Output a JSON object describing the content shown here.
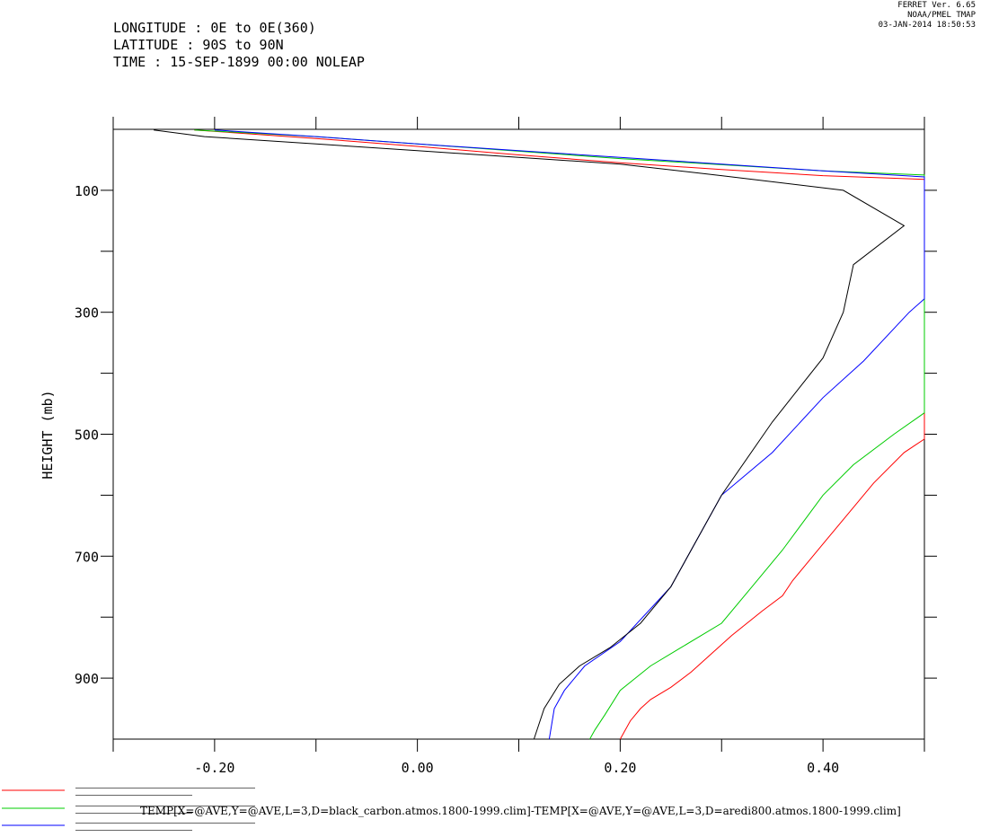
{
  "header": {
    "left_lines": [
      "LONGITUDE : 0E to 0E(360)",
      "LATITUDE : 90S to 90N",
      "TIME : 15-SEP-1899 00:00 NOLEAP"
    ],
    "right_lines": [
      "FERRET Ver. 6.65",
      "NOAA/PMEL TMAP",
      "03-JAN-2014 18:50:53"
    ]
  },
  "chart_data": {
    "type": "line",
    "ylabel": "HEIGHT (mb)",
    "xlabel": "",
    "xlim": [
      -0.3,
      0.5
    ],
    "ylim": [
      0,
      1000
    ],
    "y_inverted": true,
    "x_ticks": [
      -0.2,
      0.0,
      0.2,
      0.4
    ],
    "x_tick_labels": [
      "-0.20",
      "0.00",
      "0.20",
      "0.40"
    ],
    "x_minor_step": 0.1,
    "y_ticks": [
      100,
      300,
      500,
      700,
      900
    ],
    "y_tick_labels": [
      "100",
      "300",
      "500",
      "700",
      "900"
    ],
    "y_minor_step": 100,
    "series": [
      {
        "name": "red",
        "color": "#ff0000",
        "legend_text": "",
        "x": [
          -0.22,
          -0.1,
          0.0,
          0.1,
          0.2,
          0.3,
          0.4,
          0.5,
          0.5,
          0.48,
          0.45,
          0.42,
          0.4,
          0.37,
          0.36,
          0.34,
          0.31,
          0.29,
          0.27,
          0.25,
          0.23,
          0.22,
          0.21,
          0.2
        ],
        "y": [
          1,
          15,
          28,
          42,
          55,
          66,
          76,
          82,
          508,
          530,
          580,
          640,
          680,
          740,
          765,
          790,
          830,
          860,
          890,
          915,
          935,
          950,
          970,
          1000
        ]
      },
      {
        "name": "green",
        "color": "#00cc00",
        "legend_text": "TEMP[X=@AVE,Y=@AVE,L=3,D=black_carbon.atmos.1800-1999.clim]-TEMP[X=@AVE,Y=@AVE,L=3,D=aredi800.atmos.1800-1999.clim]",
        "x": [
          -0.22,
          -0.1,
          0.0,
          0.1,
          0.2,
          0.3,
          0.4,
          0.5,
          0.5,
          0.47,
          0.43,
          0.4,
          0.36,
          0.33,
          0.3,
          0.26,
          0.23,
          0.2,
          0.185,
          0.175,
          0.17
        ],
        "y": [
          1,
          12,
          24,
          36,
          48,
          58,
          68,
          75,
          465,
          500,
          550,
          600,
          690,
          750,
          810,
          850,
          880,
          920,
          960,
          985,
          1000
        ]
      },
      {
        "name": "blue",
        "color": "#0000ff",
        "legend_text": "",
        "x": [
          -0.2,
          -0.1,
          0.0,
          0.1,
          0.2,
          0.3,
          0.4,
          0.5,
          0.5,
          0.485,
          0.44,
          0.4,
          0.35,
          0.3,
          0.25,
          0.2,
          0.165,
          0.145,
          0.135,
          0.13
        ],
        "y": [
          1,
          12,
          24,
          35,
          46,
          57,
          68,
          78,
          278,
          300,
          380,
          440,
          530,
          600,
          750,
          840,
          880,
          920,
          950,
          1000
        ]
      },
      {
        "name": "black",
        "color": "#000000",
        "legend_text": "",
        "x": [
          -0.26,
          -0.21,
          -0.1,
          0.0,
          0.1,
          0.2,
          0.3,
          0.42,
          0.48,
          0.43,
          0.42,
          0.4,
          0.35,
          0.3,
          0.25,
          0.22,
          0.19,
          0.16,
          0.14,
          0.125,
          0.115
        ],
        "y": [
          1,
          12,
          24,
          35,
          46,
          57,
          76,
          100,
          158,
          222,
          300,
          375,
          480,
          600,
          750,
          810,
          850,
          880,
          910,
          950,
          1000
        ]
      }
    ]
  }
}
